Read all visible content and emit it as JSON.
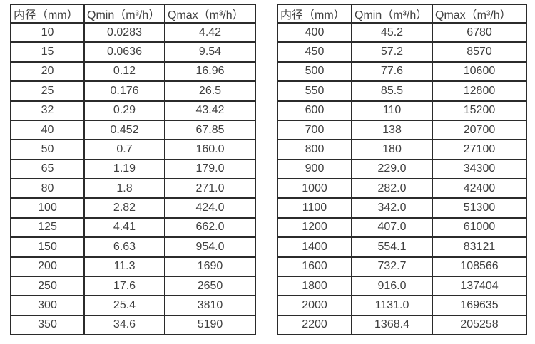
{
  "colors": {
    "background": "#ffffff",
    "text": "#3f3f3f",
    "border": "#2b2b2b"
  },
  "chart_data": [
    {
      "type": "table",
      "columns": [
        "内径（mm）",
        "Qmin（m³/h）",
        "Qmax（m³/h）"
      ],
      "rows": [
        [
          "10",
          "0.0283",
          "4.42"
        ],
        [
          "15",
          "0.0636",
          "9.54"
        ],
        [
          "20",
          "0.12",
          "16.96"
        ],
        [
          "25",
          "0.176",
          "26.5"
        ],
        [
          "32",
          "0.29",
          "43.42"
        ],
        [
          "40",
          "0.452",
          "67.85"
        ],
        [
          "50",
          "0.7",
          "160.0"
        ],
        [
          "65",
          "1.19",
          "179.0"
        ],
        [
          "80",
          "1.8",
          "271.0"
        ],
        [
          "100",
          "2.82",
          "424.0"
        ],
        [
          "125",
          "4.41",
          "662.0"
        ],
        [
          "150",
          "6.63",
          "954.0"
        ],
        [
          "200",
          "11.3",
          "1690"
        ],
        [
          "250",
          "17.6",
          "2650"
        ],
        [
          "300",
          "25.4",
          "3810"
        ],
        [
          "350",
          "34.6",
          "5190"
        ]
      ]
    },
    {
      "type": "table",
      "columns": [
        "内径（mm）",
        "Qmin（m³/h）",
        "Qmax（m³/h）"
      ],
      "rows": [
        [
          "400",
          "45.2",
          "6780"
        ],
        [
          "450",
          "57.2",
          "8570"
        ],
        [
          "500",
          "77.6",
          "10600"
        ],
        [
          "550",
          "85.5",
          "12800"
        ],
        [
          "600",
          "110",
          "15200"
        ],
        [
          "700",
          "138",
          "20700"
        ],
        [
          "800",
          "180",
          "27100"
        ],
        [
          "900",
          "229.0",
          "34300"
        ],
        [
          "1000",
          "282.0",
          "42400"
        ],
        [
          "1100",
          "342.0",
          "51300"
        ],
        [
          "1200",
          "407.0",
          "61000"
        ],
        [
          "1400",
          "554.1",
          "83121"
        ],
        [
          "1600",
          "732.7",
          "108566"
        ],
        [
          "1800",
          "916.0",
          "137404"
        ],
        [
          "2000",
          "1131.0",
          "169635"
        ],
        [
          "2200",
          "1368.4",
          "205258"
        ]
      ]
    }
  ]
}
